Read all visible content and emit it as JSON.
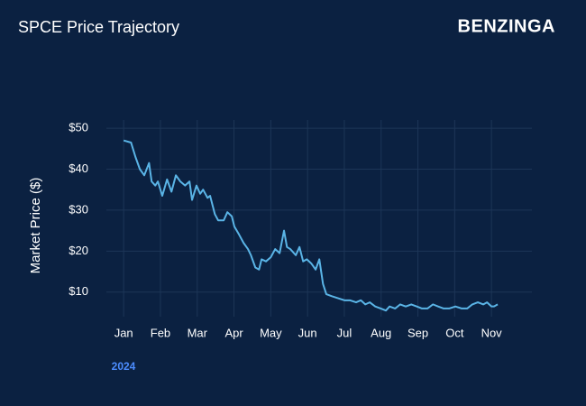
{
  "brand": "BENZINGA",
  "chart_data": {
    "type": "line",
    "title": "SPCE Price Trajectory",
    "ylabel": "Market Price ($)",
    "annotation": "2024",
    "color": "#5ab4e6",
    "grid": true,
    "x": [
      0,
      0.2,
      0.32,
      0.44,
      0.56,
      0.69,
      0.76,
      0.86,
      0.93,
      1.05,
      1.18,
      1.3,
      1.42,
      1.54,
      1.67,
      1.79,
      1.86,
      1.98,
      2.08,
      2.16,
      2.28,
      2.35,
      2.48,
      2.57,
      2.72,
      2.82,
      2.94,
      3.01,
      3.14,
      3.26,
      3.38,
      3.46,
      3.58,
      3.68,
      3.75,
      3.87,
      4.0,
      4.12,
      4.24,
      4.36,
      4.44,
      4.53,
      4.68,
      4.78,
      4.88,
      4.98,
      5.1,
      5.22,
      5.32,
      5.42,
      5.51,
      5.66,
      5.83,
      6.0,
      6.15,
      6.32,
      6.45,
      6.57,
      6.69,
      6.84,
      6.99,
      7.13,
      7.23,
      7.38,
      7.52,
      7.67,
      7.82,
      7.97,
      8.11,
      8.26,
      8.41,
      8.55,
      8.7,
      8.85,
      9.02,
      9.19,
      9.34,
      9.48,
      9.63,
      9.78,
      9.88,
      10.0,
      10.07,
      10.17
    ],
    "values": [
      47,
      46.5,
      43,
      40,
      38.5,
      41.5,
      37,
      36,
      37,
      33.5,
      37.5,
      34.5,
      38.5,
      37,
      36,
      37,
      32.5,
      36,
      34,
      35,
      33,
      33.5,
      29,
      27.5,
      27.5,
      29.5,
      28.5,
      26,
      24,
      22,
      20.5,
      19,
      16,
      15.5,
      18,
      17.5,
      18.5,
      20.5,
      19.5,
      25,
      21,
      20.5,
      19,
      21,
      17.5,
      18,
      17,
      15.5,
      18,
      12,
      9.5,
      9,
      8.5,
      8,
      8,
      7.5,
      8,
      7,
      7.5,
      6.5,
      6,
      5.5,
      6.5,
      6,
      7,
      6.5,
      7,
      6.5,
      6,
      6,
      7,
      6.5,
      6,
      6,
      6.5,
      6,
      6,
      7,
      7.5,
      7,
      7.5,
      6.5,
      6.5,
      7
    ],
    "xlim": [
      -0.47,
      11.1
    ],
    "xticks": [
      {
        "value": 0,
        "label": "Jan"
      },
      {
        "value": 1,
        "label": "Feb"
      },
      {
        "value": 2,
        "label": "Mar"
      },
      {
        "value": 3,
        "label": "Apr"
      },
      {
        "value": 4,
        "label": "May"
      },
      {
        "value": 5,
        "label": "Jun"
      },
      {
        "value": 6,
        "label": "Jul"
      },
      {
        "value": 7,
        "label": "Aug"
      },
      {
        "value": 8,
        "label": "Sep"
      },
      {
        "value": 9,
        "label": "Oct"
      },
      {
        "value": 10,
        "label": "Nov"
      }
    ],
    "ylim": [
      4,
      52
    ],
    "yticks": [
      {
        "value": 10,
        "label": "$10"
      },
      {
        "value": 20,
        "label": "$20"
      },
      {
        "value": 30,
        "label": "$30"
      },
      {
        "value": 40,
        "label": "$40"
      },
      {
        "value": 50,
        "label": "$50"
      }
    ]
  }
}
